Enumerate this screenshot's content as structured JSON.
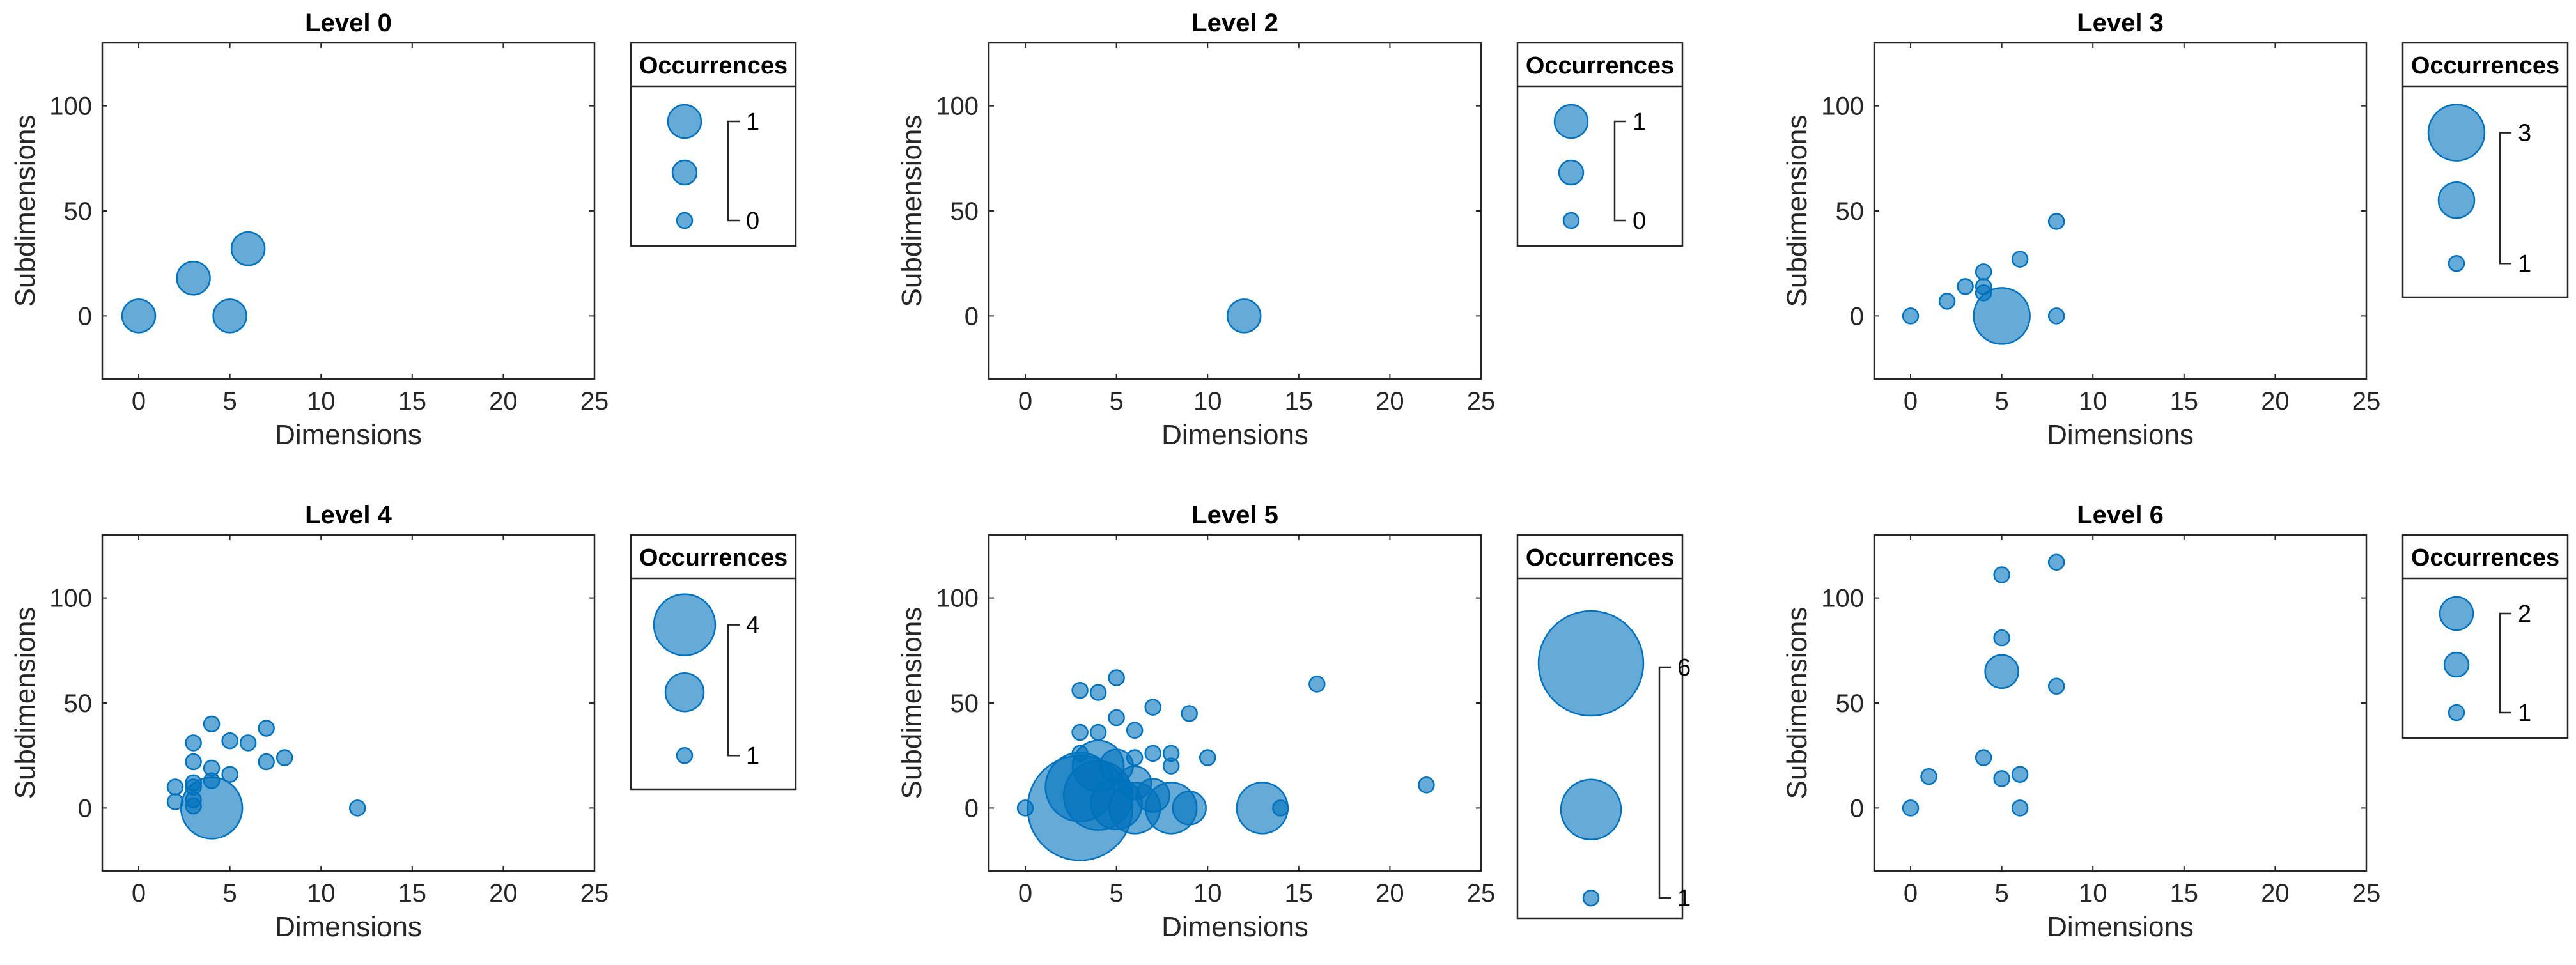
{
  "chart_data": [
    {
      "type": "scatter",
      "title": "Level 0",
      "xlabel": "Dimensions",
      "ylabel": "Subdimensions",
      "xlim": [
        -2,
        25
      ],
      "ylim": [
        -30,
        130
      ],
      "xticks": [
        "0",
        "5",
        "10",
        "15",
        "20",
        "25"
      ],
      "yticks": [
        "0",
        "50",
        "100"
      ],
      "legend": {
        "title": "Occurrences",
        "max_label": "1",
        "min_label": "0",
        "max": 1,
        "min": 0
      },
      "points": [
        {
          "x": 0,
          "y": 0,
          "n": 1
        },
        {
          "x": 3,
          "y": 18,
          "n": 1
        },
        {
          "x": 5,
          "y": 0,
          "n": 1
        },
        {
          "x": 6,
          "y": 32,
          "n": 1
        }
      ]
    },
    {
      "type": "scatter",
      "title": "Level 2",
      "xlabel": "Dimensions",
      "ylabel": "Subdimensions",
      "xlim": [
        -2,
        25
      ],
      "ylim": [
        -30,
        130
      ],
      "xticks": [
        "0",
        "5",
        "10",
        "15",
        "20",
        "25"
      ],
      "yticks": [
        "0",
        "50",
        "100"
      ],
      "legend": {
        "title": "Occurrences",
        "max_label": "1",
        "min_label": "0",
        "max": 1,
        "min": 0
      },
      "points": [
        {
          "x": 12,
          "y": 0,
          "n": 1
        }
      ]
    },
    {
      "type": "scatter",
      "title": "Level 3",
      "xlabel": "Dimensions",
      "ylabel": "Subdimensions",
      "xlim": [
        -2,
        25
      ],
      "ylim": [
        -30,
        130
      ],
      "xticks": [
        "0",
        "5",
        "10",
        "15",
        "20",
        "25"
      ],
      "yticks": [
        "0",
        "50",
        "100"
      ],
      "legend": {
        "title": "Occurrences",
        "max_label": "3",
        "min_label": "1",
        "max": 3,
        "min": 1
      },
      "points": [
        {
          "x": 0,
          "y": 0,
          "n": 1
        },
        {
          "x": 2,
          "y": 7,
          "n": 1
        },
        {
          "x": 3,
          "y": 14,
          "n": 1
        },
        {
          "x": 4,
          "y": 21,
          "n": 1
        },
        {
          "x": 4,
          "y": 14,
          "n": 1
        },
        {
          "x": 4,
          "y": 11,
          "n": 1
        },
        {
          "x": 5,
          "y": 0,
          "n": 3
        },
        {
          "x": 6,
          "y": 27,
          "n": 1
        },
        {
          "x": 8,
          "y": 45,
          "n": 1
        },
        {
          "x": 8,
          "y": 0,
          "n": 1
        }
      ]
    },
    {
      "type": "scatter",
      "title": "Level 4",
      "xlabel": "Dimensions",
      "ylabel": "Subdimensions",
      "xlim": [
        -2,
        25
      ],
      "ylim": [
        -30,
        130
      ],
      "xticks": [
        "0",
        "5",
        "10",
        "15",
        "20",
        "25"
      ],
      "yticks": [
        "0",
        "50",
        "100"
      ],
      "legend": {
        "title": "Occurrences",
        "max_label": "4",
        "min_label": "1",
        "max": 4,
        "min": 1
      },
      "points": [
        {
          "x": 2,
          "y": 10,
          "n": 1
        },
        {
          "x": 2,
          "y": 3,
          "n": 1
        },
        {
          "x": 3,
          "y": 31,
          "n": 1
        },
        {
          "x": 3,
          "y": 22,
          "n": 1
        },
        {
          "x": 3,
          "y": 12,
          "n": 1
        },
        {
          "x": 3,
          "y": 10,
          "n": 1
        },
        {
          "x": 3,
          "y": 4,
          "n": 1
        },
        {
          "x": 3,
          "y": 1,
          "n": 1
        },
        {
          "x": 4,
          "y": 40,
          "n": 1
        },
        {
          "x": 4,
          "y": 19,
          "n": 1
        },
        {
          "x": 4,
          "y": 13,
          "n": 1
        },
        {
          "x": 4,
          "y": 0,
          "n": 4
        },
        {
          "x": 5,
          "y": 32,
          "n": 1
        },
        {
          "x": 5,
          "y": 16,
          "n": 1
        },
        {
          "x": 6,
          "y": 31,
          "n": 1
        },
        {
          "x": 7,
          "y": 38,
          "n": 1
        },
        {
          "x": 7,
          "y": 22,
          "n": 1
        },
        {
          "x": 8,
          "y": 24,
          "n": 1
        },
        {
          "x": 12,
          "y": 0,
          "n": 1
        }
      ]
    },
    {
      "type": "scatter",
      "title": "Level 5",
      "xlabel": "Dimensions",
      "ylabel": "Subdimensions",
      "xlim": [
        -2,
        25
      ],
      "ylim": [
        -30,
        130
      ],
      "xticks": [
        "0",
        "5",
        "10",
        "15",
        "20",
        "25"
      ],
      "yticks": [
        "0",
        "50",
        "100"
      ],
      "legend": {
        "title": "Occurrences",
        "max_label": "6",
        "min_label": "1",
        "max": 6,
        "min": 1
      },
      "points": [
        {
          "x": 0,
          "y": 0,
          "n": 1
        },
        {
          "x": 3,
          "y": 56,
          "n": 1
        },
        {
          "x": 3,
          "y": 36,
          "n": 1
        },
        {
          "x": 3,
          "y": 26,
          "n": 1
        },
        {
          "x": 3,
          "y": 10,
          "n": 4
        },
        {
          "x": 3,
          "y": 0,
          "n": 6
        },
        {
          "x": 4,
          "y": 55,
          "n": 1
        },
        {
          "x": 4,
          "y": 36,
          "n": 1
        },
        {
          "x": 4,
          "y": 20,
          "n": 3
        },
        {
          "x": 4,
          "y": 6,
          "n": 4
        },
        {
          "x": 5,
          "y": 62,
          "n": 1
        },
        {
          "x": 5,
          "y": 43,
          "n": 1
        },
        {
          "x": 5,
          "y": 20,
          "n": 2
        },
        {
          "x": 5,
          "y": 2,
          "n": 3
        },
        {
          "x": 6,
          "y": 37,
          "n": 1
        },
        {
          "x": 6,
          "y": 24,
          "n": 1
        },
        {
          "x": 6,
          "y": 12,
          "n": 2
        },
        {
          "x": 6,
          "y": 0,
          "n": 3
        },
        {
          "x": 7,
          "y": 48,
          "n": 1
        },
        {
          "x": 7,
          "y": 26,
          "n": 1
        },
        {
          "x": 7,
          "y": 6,
          "n": 2
        },
        {
          "x": 8,
          "y": 26,
          "n": 1
        },
        {
          "x": 8,
          "y": 20,
          "n": 1
        },
        {
          "x": 8,
          "y": 0,
          "n": 3
        },
        {
          "x": 9,
          "y": 45,
          "n": 1
        },
        {
          "x": 9,
          "y": 0,
          "n": 2
        },
        {
          "x": 10,
          "y": 24,
          "n": 1
        },
        {
          "x": 13,
          "y": 0,
          "n": 3
        },
        {
          "x": 14,
          "y": 0,
          "n": 1
        },
        {
          "x": 16,
          "y": 59,
          "n": 1
        },
        {
          "x": 22,
          "y": 11,
          "n": 1
        }
      ]
    },
    {
      "type": "scatter",
      "title": "Level 6",
      "xlabel": "Dimensions",
      "ylabel": "Subdimensions",
      "xlim": [
        -2,
        25
      ],
      "ylim": [
        -30,
        130
      ],
      "xticks": [
        "0",
        "5",
        "10",
        "15",
        "20",
        "25"
      ],
      "yticks": [
        "0",
        "50",
        "100"
      ],
      "legend": {
        "title": "Occurrences",
        "max_label": "2",
        "min_label": "1",
        "max": 2,
        "min": 1
      },
      "points": [
        {
          "x": 0,
          "y": 0,
          "n": 1
        },
        {
          "x": 1,
          "y": 15,
          "n": 1
        },
        {
          "x": 4,
          "y": 24,
          "n": 1
        },
        {
          "x": 5,
          "y": 111,
          "n": 1
        },
        {
          "x": 5,
          "y": 81,
          "n": 1
        },
        {
          "x": 5,
          "y": 65,
          "n": 2
        },
        {
          "x": 5,
          "y": 14,
          "n": 1
        },
        {
          "x": 6,
          "y": 16,
          "n": 1
        },
        {
          "x": 6,
          "y": 0,
          "n": 1
        },
        {
          "x": 8,
          "y": 117,
          "n": 1
        },
        {
          "x": 8,
          "y": 58,
          "n": 1
        }
      ]
    }
  ]
}
